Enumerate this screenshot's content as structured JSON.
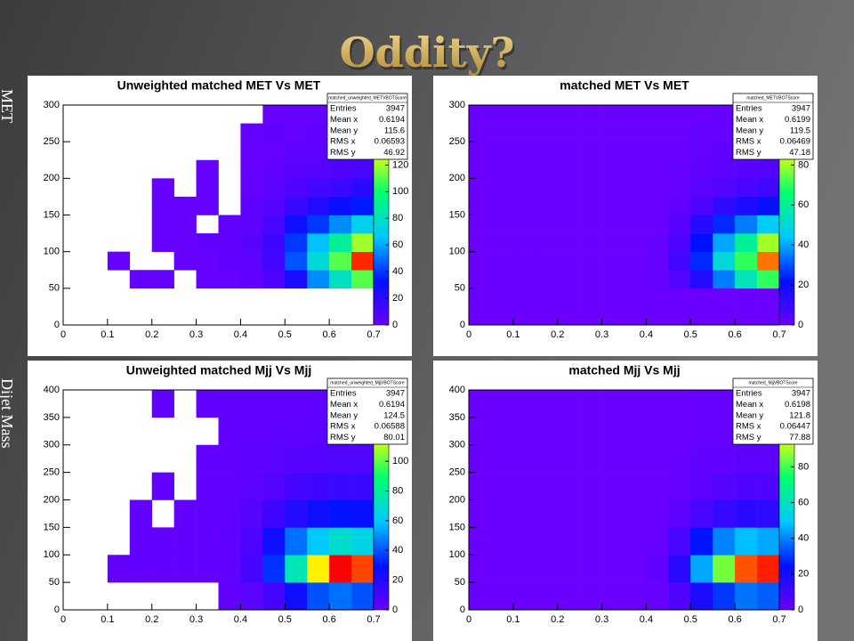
{
  "slide_title": "Oddity?",
  "side_labels": [
    "MET",
    "Dijet Mass"
  ],
  "chart_data": [
    {
      "type": "heatmap",
      "title": "Unweighted matched MET Vs MET",
      "fill_empty": false,
      "colors": [
        "#6a00ff",
        "#0010ff",
        "#00c8ff",
        "#00ff70",
        "#ffff00",
        "#ff0000"
      ],
      "xlim": [
        0,
        0.7
      ],
      "xticks": [
        0,
        0.1,
        0.2,
        0.3,
        0.4,
        0.5,
        0.6,
        0.7
      ],
      "ylim": [
        0,
        300
      ],
      "yticks": [
        0,
        50,
        100,
        150,
        200,
        250,
        300
      ],
      "zlim": [
        0,
        165
      ],
      "zticks": [
        0,
        20,
        40,
        60,
        80,
        100,
        120
      ],
      "xbins": [
        0,
        0.05,
        0.1,
        0.15,
        0.2,
        0.25,
        0.3,
        0.35,
        0.4,
        0.45,
        0.5,
        0.55,
        0.6,
        0.65,
        0.7
      ],
      "ybins": [
        0,
        25,
        50,
        75,
        100,
        125,
        150,
        175,
        200,
        225,
        250,
        275,
        300
      ],
      "z": [
        [
          0,
          0,
          0,
          0,
          0,
          0,
          0,
          0,
          0,
          0,
          0,
          0,
          0,
          0
        ],
        [
          0,
          0,
          0,
          0,
          0,
          0,
          0,
          0,
          0,
          0,
          0,
          0,
          0,
          0
        ],
        [
          0,
          0,
          0,
          2,
          2,
          0,
          2,
          2,
          3,
          8,
          25,
          55,
          80,
          110
        ],
        [
          0,
          0,
          2,
          0,
          0,
          2,
          2,
          3,
          4,
          12,
          45,
          75,
          110,
          160
        ],
        [
          0,
          0,
          0,
          0,
          2,
          2,
          3,
          3,
          6,
          14,
          40,
          65,
          90,
          120
        ],
        [
          0,
          0,
          0,
          0,
          1,
          2,
          0,
          3,
          4,
          10,
          28,
          40,
          55,
          70
        ],
        [
          0,
          0,
          0,
          0,
          2,
          2,
          2,
          0,
          4,
          6,
          15,
          22,
          30,
          35
        ],
        [
          0,
          0,
          0,
          0,
          1,
          0,
          2,
          0,
          2,
          4,
          8,
          12,
          15,
          20
        ],
        [
          0,
          0,
          0,
          0,
          0,
          0,
          2,
          0,
          2,
          3,
          5,
          6,
          8,
          10
        ],
        [
          0,
          0,
          0,
          0,
          0,
          0,
          0,
          0,
          1,
          2,
          4,
          4,
          4,
          5
        ],
        [
          0,
          0,
          0,
          0,
          0,
          0,
          0,
          0,
          2,
          3,
          2,
          3,
          4,
          4
        ],
        [
          0,
          0,
          0,
          0,
          0,
          0,
          0,
          0,
          0,
          1,
          2,
          2,
          3,
          3
        ]
      ],
      "stats": {
        "name": "matched_unweighted_METVBOTScore",
        "rows": [
          [
            "Entries",
            3947
          ],
          [
            "Mean x",
            0.6194
          ],
          [
            "Mean y",
            115.6
          ],
          [
            "RMS x",
            0.06593
          ],
          [
            "RMS y",
            46.92
          ]
        ]
      }
    },
    {
      "type": "heatmap",
      "title": "matched MET Vs MET",
      "fill_empty": true,
      "colors": [
        "#6a00ff",
        "#0010ff",
        "#00c8ff",
        "#00ff70",
        "#ffff00",
        "#ff0000"
      ],
      "xlim": [
        0,
        0.7
      ],
      "xticks": [
        0,
        0.1,
        0.2,
        0.3,
        0.4,
        0.5,
        0.6,
        0.7
      ],
      "ylim": [
        0,
        300
      ],
      "yticks": [
        0,
        50,
        100,
        150,
        200,
        250,
        300
      ],
      "zlim": [
        0,
        110
      ],
      "zticks": [
        0,
        20,
        40,
        60,
        80
      ],
      "xbins": [
        0,
        0.05,
        0.1,
        0.15,
        0.2,
        0.25,
        0.3,
        0.35,
        0.4,
        0.45,
        0.5,
        0.55,
        0.6,
        0.65,
        0.7
      ],
      "ybins": [
        0,
        25,
        50,
        75,
        100,
        125,
        150,
        175,
        200,
        225,
        250,
        275,
        300
      ],
      "z": [
        [
          0,
          0,
          0,
          0,
          0,
          0,
          0,
          0,
          0,
          0,
          0,
          0,
          0,
          0
        ],
        [
          0,
          0,
          0,
          0,
          0,
          0,
          0,
          0,
          0,
          0,
          0,
          0,
          0,
          0
        ],
        [
          0,
          0,
          0,
          0,
          0,
          0,
          0,
          0,
          1,
          5,
          15,
          35,
          55,
          70
        ],
        [
          0,
          0,
          0,
          0,
          0,
          0,
          0,
          0,
          1,
          8,
          25,
          50,
          70,
          100
        ],
        [
          0,
          0,
          0,
          0,
          0,
          0,
          0,
          0,
          1,
          6,
          22,
          40,
          60,
          80
        ],
        [
          0,
          0,
          0,
          0,
          0,
          0,
          0,
          0,
          0,
          4,
          14,
          25,
          35,
          45
        ],
        [
          0,
          0,
          0,
          0,
          0,
          0,
          0,
          0,
          0,
          2,
          6,
          12,
          16,
          20
        ],
        [
          0,
          0,
          0,
          0,
          0,
          0,
          0,
          0,
          0,
          1,
          3,
          5,
          7,
          9
        ],
        [
          0,
          0,
          0,
          0,
          0,
          0,
          0,
          0,
          0,
          1,
          2,
          3,
          4,
          5
        ],
        [
          0,
          0,
          0,
          0,
          0,
          0,
          0,
          0,
          0,
          0,
          1,
          2,
          3,
          3
        ],
        [
          0,
          0,
          0,
          0,
          0,
          0,
          0,
          0,
          0,
          0,
          1,
          1,
          2,
          2
        ],
        [
          0,
          0,
          0,
          0,
          0,
          0,
          0,
          0,
          0,
          0,
          0,
          1,
          1,
          2
        ]
      ],
      "stats": {
        "name": "matched_METVBOTScore",
        "rows": [
          [
            "Entries",
            3947
          ],
          [
            "Mean x",
            0.6199
          ],
          [
            "Mean y",
            119.5
          ],
          [
            "RMS x",
            0.06469
          ],
          [
            "RMS y",
            47.18
          ]
        ]
      }
    },
    {
      "type": "heatmap",
      "title": "Unweighted matched Mjj Vs Mjj",
      "fill_empty": false,
      "colors": [
        "#6a00ff",
        "#0010ff",
        "#00c8ff",
        "#00ff70",
        "#ffff00",
        "#ff0000"
      ],
      "xlim": [
        0,
        0.7
      ],
      "xticks": [
        0,
        0.1,
        0.2,
        0.3,
        0.4,
        0.5,
        0.6,
        0.7
      ],
      "ylim": [
        0,
        400
      ],
      "yticks": [
        0,
        50,
        100,
        150,
        200,
        250,
        300,
        350,
        400
      ],
      "zlim": [
        0,
        148
      ],
      "zticks": [
        0,
        20,
        40,
        60,
        80,
        100
      ],
      "xbins": [
        0,
        0.05,
        0.1,
        0.15,
        0.2,
        0.25,
        0.3,
        0.35,
        0.4,
        0.45,
        0.5,
        0.55,
        0.6,
        0.65,
        0.7
      ],
      "ybins": [
        0,
        50,
        100,
        150,
        200,
        250,
        300,
        350,
        400
      ],
      "z": [
        [
          0,
          0,
          0,
          0,
          0,
          0,
          0,
          2,
          4,
          10,
          25,
          40,
          45,
          40
        ],
        [
          0,
          0,
          2,
          2,
          2,
          2,
          2,
          3,
          10,
          35,
          75,
          120,
          148,
          140
        ],
        [
          0,
          0,
          0,
          2,
          2,
          2,
          2,
          3,
          8,
          25,
          45,
          60,
          70,
          65
        ],
        [
          0,
          0,
          0,
          2,
          0,
          2,
          2,
          3,
          6,
          12,
          20,
          25,
          30,
          28
        ],
        [
          0,
          0,
          0,
          0,
          2,
          0,
          2,
          2,
          4,
          6,
          10,
          12,
          14,
          14
        ],
        [
          0,
          0,
          0,
          0,
          0,
          0,
          2,
          2,
          3,
          4,
          5,
          6,
          7,
          7
        ],
        [
          0,
          0,
          0,
          0,
          0,
          0,
          0,
          2,
          2,
          3,
          3,
          4,
          4,
          4
        ],
        [
          0,
          0,
          0,
          0,
          2,
          0,
          2,
          2,
          2,
          2,
          2,
          3,
          3,
          3
        ]
      ],
      "stats": {
        "name": "matched_unweighted_MjjVBOTScore",
        "rows": [
          [
            "Entries",
            3947
          ],
          [
            "Mean x",
            0.6194
          ],
          [
            "Mean y",
            124.5
          ],
          [
            "RMS x",
            0.06588
          ],
          [
            "RMS y",
            80.01
          ]
        ]
      }
    },
    {
      "type": "heatmap",
      "title": "matched Mjj Vs Mjj",
      "fill_empty": true,
      "colors": [
        "#6a00ff",
        "#0010ff",
        "#00c8ff",
        "#00ff70",
        "#ffff00",
        "#ff0000"
      ],
      "xlim": [
        0,
        0.7
      ],
      "xticks": [
        0,
        0.1,
        0.2,
        0.3,
        0.4,
        0.5,
        0.6,
        0.7
      ],
      "ylim": [
        0,
        400
      ],
      "yticks": [
        0,
        50,
        100,
        150,
        200,
        250,
        300,
        350,
        400
      ],
      "zlim": [
        0,
        123
      ],
      "zticks": [
        0,
        20,
        40,
        60,
        80
      ],
      "xbins": [
        0,
        0.05,
        0.1,
        0.15,
        0.2,
        0.25,
        0.3,
        0.35,
        0.4,
        0.45,
        0.5,
        0.55,
        0.6,
        0.65,
        0.7
      ],
      "ybins": [
        0,
        50,
        100,
        150,
        200,
        250,
        300,
        350,
        400
      ],
      "z": [
        [
          0,
          0,
          0,
          0,
          0,
          0,
          0,
          0,
          1,
          6,
          18,
          30,
          38,
          35
        ],
        [
          0,
          0,
          0,
          0,
          0,
          0,
          0,
          0,
          2,
          15,
          45,
          85,
          115,
          120
        ],
        [
          0,
          0,
          0,
          0,
          0,
          0,
          0,
          0,
          1,
          8,
          25,
          40,
          48,
          45
        ],
        [
          0,
          0,
          0,
          0,
          0,
          0,
          0,
          0,
          0,
          3,
          8,
          12,
          15,
          14
        ],
        [
          0,
          0,
          0,
          0,
          0,
          0,
          0,
          0,
          0,
          1,
          3,
          5,
          6,
          6
        ],
        [
          0,
          0,
          0,
          0,
          0,
          0,
          0,
          0,
          0,
          1,
          2,
          2,
          3,
          3
        ],
        [
          0,
          0,
          0,
          0,
          0,
          0,
          0,
          0,
          0,
          0,
          1,
          1,
          2,
          2
        ],
        [
          0,
          0,
          0,
          0,
          0,
          0,
          0,
          0,
          0,
          0,
          1,
          1,
          1,
          1
        ]
      ],
      "stats": {
        "name": "matched_MjjVBOTScore",
        "rows": [
          [
            "Entries",
            3947
          ],
          [
            "Mean x",
            0.6198
          ],
          [
            "Mean y",
            121.8
          ],
          [
            "RMS x",
            0.06447
          ],
          [
            "RMS y",
            77.88
          ]
        ]
      }
    }
  ]
}
